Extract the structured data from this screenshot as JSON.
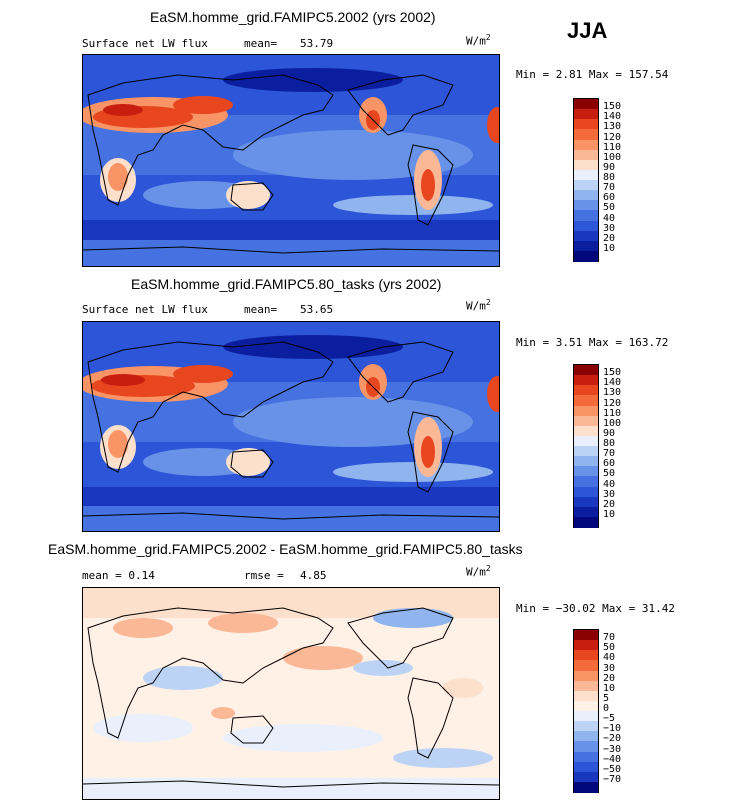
{
  "season": "JJA",
  "panels": [
    {
      "title": "EaSM.homme_grid.FAMIPC5.2002 (yrs 2002)",
      "left_stat": "Surface net LW flux",
      "mid_label": "mean=",
      "mid_value": "53.79",
      "units": "W/m",
      "units_exp": "2",
      "minmax": "Min =   2.81 Max = 157.54",
      "colorbar_labels": [
        "150",
        "140",
        "130",
        "120",
        "110",
        "100",
        "90",
        "80",
        "70",
        "60",
        "50",
        "40",
        "30",
        "20",
        "10"
      ]
    },
    {
      "title": "EaSM.homme_grid.FAMIPC5.80_tasks (yrs 2002)",
      "left_stat": "Surface net LW flux",
      "mid_label": "mean=",
      "mid_value": "53.65",
      "units": "W/m",
      "units_exp": "2",
      "minmax": "Min =   3.51 Max = 163.72",
      "colorbar_labels": [
        "150",
        "140",
        "130",
        "120",
        "110",
        "100",
        "90",
        "80",
        "70",
        "60",
        "50",
        "40",
        "30",
        "20",
        "10"
      ]
    },
    {
      "title": "EaSM.homme_grid.FAMIPC5.2002 - EaSM.homme_grid.FAMIPC5.80_tasks",
      "left_stat": "mean =   0.14",
      "mid_label": "rmse =",
      "mid_value": "4.85",
      "units": "W/m",
      "units_exp": "2",
      "minmax": "Min = −30.02 Max =  31.42",
      "colorbar_labels": [
        "70",
        "50",
        "40",
        "30",
        "20",
        "10",
        "5",
        "0",
        "−5",
        "−10",
        "−20",
        "−30",
        "−40",
        "−50",
        "−70"
      ]
    }
  ],
  "colors": {
    "abs_scale": [
      "#8b0000",
      "#c81e10",
      "#e8461e",
      "#f36b3b",
      "#f99466",
      "#fbb897",
      "#fde0cb",
      "#e9f0fb",
      "#bcd3f5",
      "#8fb4ee",
      "#6792e8",
      "#4572e0",
      "#2c55d8",
      "#1a37c0",
      "#0b1ea0",
      "#00087a"
    ],
    "diff_scale": [
      "#8b0000",
      "#c81e10",
      "#e8461e",
      "#f36b3b",
      "#f99466",
      "#fbb897",
      "#fde0cb",
      "#fff1e6",
      "#e9f0fb",
      "#bcd3f5",
      "#8fb4ee",
      "#6792e8",
      "#4572e0",
      "#2c55d8",
      "#1a37c0",
      "#00087a"
    ]
  }
}
